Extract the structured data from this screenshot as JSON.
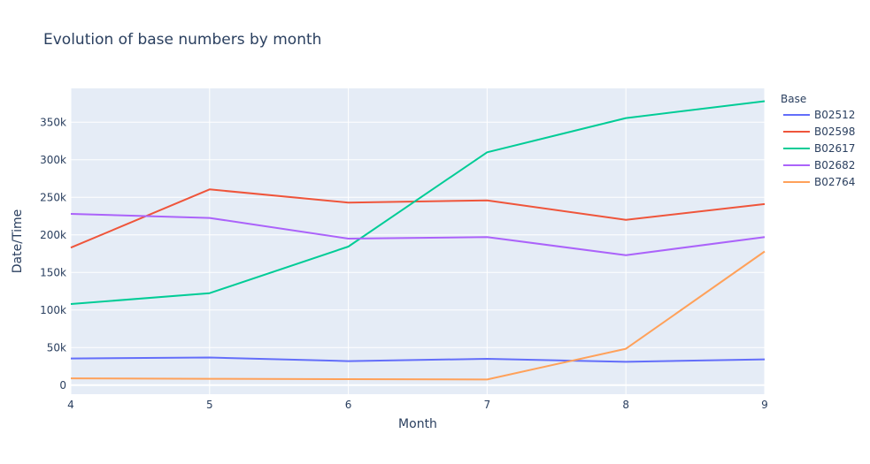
{
  "chart_data": {
    "type": "line",
    "title": "Evolution of base numbers by month",
    "xlabel": "Month",
    "ylabel": "Date/Time",
    "x": [
      4,
      5,
      6,
      7,
      8,
      9
    ],
    "xlim": [
      4,
      9
    ],
    "ylim": [
      -12000,
      395000
    ],
    "x_ticks": [
      "4",
      "5",
      "6",
      "7",
      "8",
      "9"
    ],
    "y_ticks": [
      {
        "value": 0,
        "label": "0"
      },
      {
        "value": 50000,
        "label": "50k"
      },
      {
        "value": 100000,
        "label": "100k"
      },
      {
        "value": 150000,
        "label": "150k"
      },
      {
        "value": 200000,
        "label": "200k"
      },
      {
        "value": 250000,
        "label": "250k"
      },
      {
        "value": 300000,
        "label": "300k"
      },
      {
        "value": 350000,
        "label": "350k"
      }
    ],
    "grid": true,
    "legend": {
      "title": "Base",
      "placement": "right"
    },
    "series": [
      {
        "name": "B02512",
        "color": "#636efa",
        "values": [
          35500,
          36800,
          32000,
          35000,
          31000,
          34300
        ]
      },
      {
        "name": "B02598",
        "color": "#ef553b",
        "values": [
          183000,
          260500,
          243000,
          246000,
          220000,
          241000
        ]
      },
      {
        "name": "B02617",
        "color": "#00cc96",
        "values": [
          108000,
          122500,
          184500,
          310000,
          355500,
          378000
        ]
      },
      {
        "name": "B02682",
        "color": "#ab63fa",
        "values": [
          228000,
          222500,
          195000,
          197000,
          173000,
          197000
        ]
      },
      {
        "name": "B02764",
        "color": "#ffa15a",
        "values": [
          9000,
          8500,
          8000,
          7500,
          48500,
          178000
        ]
      }
    ]
  }
}
